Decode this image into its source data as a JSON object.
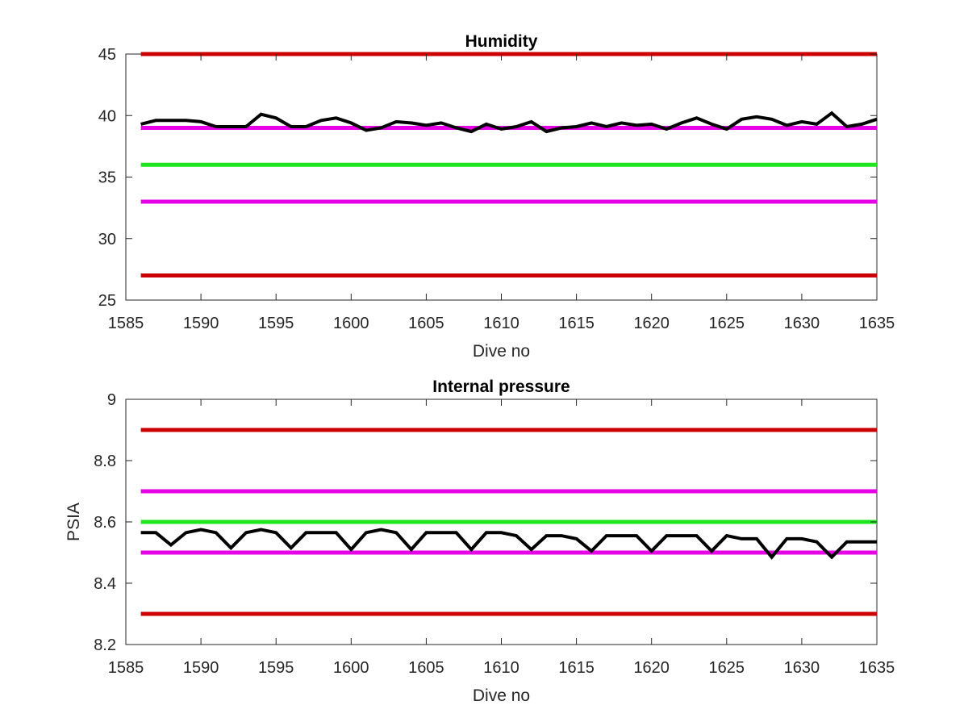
{
  "chart_data": [
    {
      "type": "line",
      "title": "Humidity",
      "xlabel": "Dive no",
      "ylabel": "",
      "xlim": [
        1585,
        1635
      ],
      "ylim": [
        25,
        45
      ],
      "xticks": [
        "1585",
        "1590",
        "1595",
        "1600",
        "1605",
        "1610",
        "1615",
        "1620",
        "1625",
        "1630",
        "1635"
      ],
      "yticks": [
        "25",
        "30",
        "35",
        "40",
        "45"
      ],
      "grid": false,
      "reference_lines": [
        {
          "y": 45,
          "color": "#cc0000"
        },
        {
          "y": 39,
          "color": "#e600e6"
        },
        {
          "y": 36,
          "color": "#1ee61e"
        },
        {
          "y": 33,
          "color": "#e600e6"
        },
        {
          "y": 27,
          "color": "#cc0000"
        }
      ],
      "series": [
        {
          "color": "#000000",
          "x": [
            1586,
            1587,
            1588,
            1589,
            1590,
            1591,
            1592,
            1593,
            1594,
            1595,
            1596,
            1597,
            1598,
            1599,
            1600,
            1601,
            1602,
            1603,
            1604,
            1605,
            1606,
            1607,
            1608,
            1609,
            1610,
            1611,
            1612,
            1613,
            1614,
            1615,
            1616,
            1617,
            1618,
            1619,
            1620,
            1621,
            1622,
            1623,
            1624,
            1625,
            1626,
            1627,
            1628,
            1629,
            1630,
            1631,
            1632,
            1633,
            1634,
            1635
          ],
          "values": [
            39.3,
            39.6,
            39.6,
            39.6,
            39.5,
            39.1,
            39.1,
            39.1,
            40.1,
            39.8,
            39.1,
            39.1,
            39.6,
            39.8,
            39.4,
            38.8,
            39.0,
            39.5,
            39.4,
            39.2,
            39.4,
            39.0,
            38.7,
            39.3,
            38.9,
            39.1,
            39.5,
            38.7,
            39.0,
            39.1,
            39.4,
            39.1,
            39.4,
            39.2,
            39.3,
            38.9,
            39.4,
            39.8,
            39.3,
            38.9,
            39.7,
            39.9,
            39.7,
            39.2,
            39.5,
            39.3,
            40.2,
            39.1,
            39.3,
            39.7
          ]
        }
      ]
    },
    {
      "type": "line",
      "title": "Internal pressure",
      "xlabel": "Dive no",
      "ylabel": "PSIA",
      "xlim": [
        1585,
        1635
      ],
      "ylim": [
        8.2,
        9
      ],
      "xticks": [
        "1585",
        "1590",
        "1595",
        "1600",
        "1605",
        "1610",
        "1615",
        "1620",
        "1625",
        "1630",
        "1635"
      ],
      "yticks": [
        "8.2",
        "8.4",
        "8.6",
        "8.8",
        "9"
      ],
      "grid": false,
      "reference_lines": [
        {
          "y": 8.9,
          "color": "#cc0000"
        },
        {
          "y": 8.7,
          "color": "#e600e6"
        },
        {
          "y": 8.6,
          "color": "#1ee61e"
        },
        {
          "y": 8.5,
          "color": "#e600e6"
        },
        {
          "y": 8.3,
          "color": "#cc0000"
        }
      ],
      "series": [
        {
          "color": "#000000",
          "x": [
            1586,
            1587,
            1588,
            1589,
            1590,
            1591,
            1592,
            1593,
            1594,
            1595,
            1596,
            1597,
            1598,
            1599,
            1600,
            1601,
            1602,
            1603,
            1604,
            1605,
            1606,
            1607,
            1608,
            1609,
            1610,
            1611,
            1612,
            1613,
            1614,
            1615,
            1616,
            1617,
            1618,
            1619,
            1620,
            1621,
            1622,
            1623,
            1624,
            1625,
            1626,
            1627,
            1628,
            1629,
            1630,
            1631,
            1632,
            1633,
            1634,
            1635
          ],
          "values": [
            8.565,
            8.565,
            8.525,
            8.565,
            8.575,
            8.565,
            8.515,
            8.565,
            8.575,
            8.565,
            8.515,
            8.565,
            8.565,
            8.565,
            8.51,
            8.565,
            8.575,
            8.565,
            8.51,
            8.565,
            8.565,
            8.565,
            8.51,
            8.565,
            8.565,
            8.555,
            8.51,
            8.555,
            8.555,
            8.545,
            8.505,
            8.555,
            8.555,
            8.555,
            8.505,
            8.555,
            8.555,
            8.555,
            8.505,
            8.555,
            8.545,
            8.545,
            8.485,
            8.545,
            8.545,
            8.535,
            8.485,
            8.535,
            8.535,
            8.535
          ]
        }
      ]
    }
  ]
}
